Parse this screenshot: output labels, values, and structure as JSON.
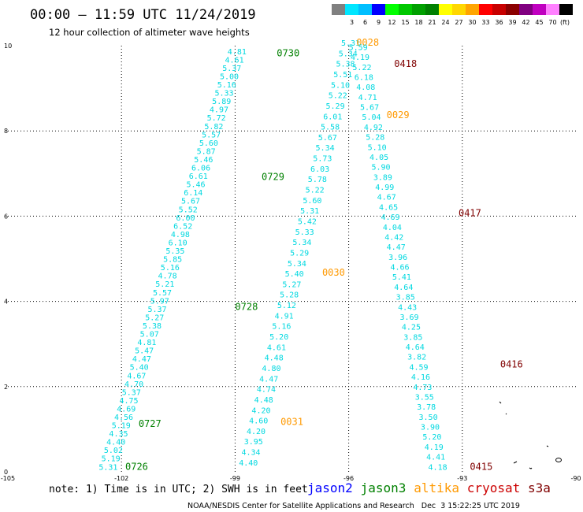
{
  "header": {
    "title": "00:00 – 11:59 UTC 11/24/2019",
    "subtitle": "12 hour collection of altimeter wave heights"
  },
  "colorbar": {
    "unit": "(ft)",
    "bins": [
      {
        "label": "",
        "color": "#808080"
      },
      {
        "label": "3",
        "color": "#00e6ff"
      },
      {
        "label": "6",
        "color": "#00bfff"
      },
      {
        "label": "9",
        "color": "#0000ff"
      },
      {
        "label": "12",
        "color": "#00ff00"
      },
      {
        "label": "15",
        "color": "#00c800"
      },
      {
        "label": "18",
        "color": "#00a000"
      },
      {
        "label": "21",
        "color": "#008000"
      },
      {
        "label": "24",
        "color": "#ffff00"
      },
      {
        "label": "27",
        "color": "#ffd700"
      },
      {
        "label": "30",
        "color": "#ffa500"
      },
      {
        "label": "33",
        "color": "#ff0000"
      },
      {
        "label": "36",
        "color": "#c80000"
      },
      {
        "label": "39",
        "color": "#8b0000"
      },
      {
        "label": "42",
        "color": "#800080"
      },
      {
        "label": "45",
        "color": "#c000c0"
      },
      {
        "label": "70",
        "color": "#ff80ff"
      },
      {
        "label": "",
        "color": "#000000"
      }
    ]
  },
  "footer": {
    "note": "note: 1) Time is in UTC; 2) SWH is in feet",
    "credit": "NOAA/NESDIS Center for Satellite Applications and Research   Dec  3 15:22:25 UTC 2019",
    "legend": [
      {
        "name": "jason2",
        "color": "#0000ff"
      },
      {
        "name": "jason3",
        "color": "#008000"
      },
      {
        "name": "altika",
        "color": "#ff9900"
      },
      {
        "name": "cryosat",
        "color": "#cc0000"
      },
      {
        "name": "s3a",
        "color": "#800000"
      }
    ]
  },
  "chart_data": {
    "type": "scatter",
    "title": "00:00 – 11:59 UTC 11/24/2019",
    "subtitle": "12 hour collection of altimeter wave heights",
    "xlim": [
      -105,
      -90
    ],
    "ylim": [
      0,
      10
    ],
    "x_ticks": [
      -105,
      -102,
      -99,
      -96,
      -93,
      -90
    ],
    "y_ticks": [
      0,
      2,
      4,
      6,
      8,
      10
    ],
    "grid": true,
    "tracks": [
      {
        "satellite": "jason3",
        "color": "#008000",
        "start": [
          -102.6,
          0.05
        ],
        "end": [
          -99.2,
          9.8
        ],
        "swh": [
          "5.31",
          "5.19",
          "5.02",
          "4.40",
          "4.35",
          "5.19",
          "4.56",
          "4.69",
          "4.75",
          "5.37",
          "4.70",
          "4.67",
          "5.40",
          "4.47",
          "5.47",
          "4.81",
          "5.07",
          "5.38",
          "5.27",
          "5.37",
          "5.97",
          "5.57",
          "5.21",
          "4.78",
          "5.16",
          "5.85",
          "5.35",
          "6.10",
          "4.98",
          "6.52",
          "6.00",
          "5.52",
          "5.67",
          "6.14",
          "5.46",
          "6.61",
          "6.06",
          "5.46",
          "5.87",
          "5.60",
          "5.57",
          "5.82",
          "5.72",
          "4.97",
          "5.89",
          "5.33",
          "5.16",
          "5.00",
          "5.37",
          "4.61",
          "4.81"
        ],
        "time_labels": [
          {
            "label": "0726",
            "x": -101.9,
            "y": 0.05
          },
          {
            "label": "0727",
            "x": -101.55,
            "y": 1.05
          },
          {
            "label": "0728",
            "x": -99.0,
            "y": 3.8
          },
          {
            "label": "0729",
            "x": -98.3,
            "y": 6.85
          },
          {
            "label": "0730",
            "x": -97.9,
            "y": 9.75
          }
        ]
      },
      {
        "satellite": "altika",
        "color": "#ff9900",
        "start": [
          -98.9,
          0.15
        ],
        "end": [
          -96.2,
          10.0
        ],
        "swh": [
          "4.40",
          "4.34",
          "3.95",
          "4.20",
          "4.60",
          "4.20",
          "4.48",
          "4.74",
          "4.47",
          "4.80",
          "4.48",
          "4.61",
          "5.20",
          "5.16",
          "4.91",
          "5.12",
          "5.28",
          "5.27",
          "5.40",
          "5.34",
          "5.29",
          "5.34",
          "5.33",
          "5.42",
          "5.31",
          "5.60",
          "5.22",
          "5.78",
          "6.03",
          "5.73",
          "5.34",
          "5.67",
          "5.58",
          "6.01",
          "5.29",
          "5.22",
          "5.10",
          "5.51",
          "5.38",
          "5.34",
          "5.31"
        ],
        "time_labels": [
          {
            "label": "0031",
            "x": -97.8,
            "y": 1.1
          },
          {
            "label": "0030",
            "x": -96.7,
            "y": 4.6
          },
          {
            "label": "0029",
            "x": -95.0,
            "y": 8.3
          },
          {
            "label": "0028",
            "x": -95.8,
            "y": 10.0
          }
        ]
      },
      {
        "satellite": "s3a",
        "color": "#800000",
        "start": [
          -96.0,
          9.9
        ],
        "end": [
          -93.9,
          0.05
        ],
        "swh": [
          "5.59",
          "4.19",
          "5.22",
          "6.18",
          "4.08",
          "4.71",
          "5.67",
          "5.04",
          "4.92",
          "5.28",
          "5.10",
          "4.05",
          "5.90",
          "3.89",
          "4.99",
          "4.67",
          "4.65",
          "4.69",
          "4.04",
          "4.42",
          "4.47",
          "3.96",
          "4.66",
          "5.41",
          "4.64",
          "3.85",
          "4.43",
          "3.69",
          "4.25",
          "3.85",
          "4.64",
          "3.82",
          "4.59",
          "4.16",
          "4.73",
          "3.55",
          "3.78",
          "3.50",
          "3.90",
          "5.20",
          "4.19",
          "4.41",
          "4.18"
        ],
        "time_labels": [
          {
            "label": "0418",
            "x": -94.8,
            "y": 9.5
          },
          {
            "label": "0417",
            "x": -93.1,
            "y": 6.0
          },
          {
            "label": "0416",
            "x": -92.0,
            "y": 2.45
          },
          {
            "label": "0415",
            "x": -92.8,
            "y": 0.05
          }
        ]
      }
    ]
  }
}
